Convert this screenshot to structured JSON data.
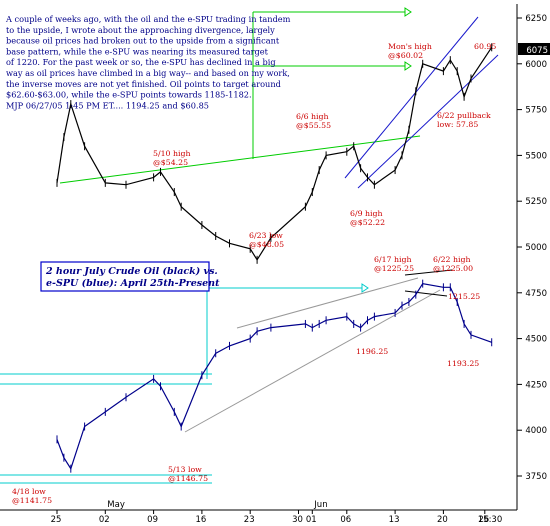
{
  "chart_data": {
    "type": "line",
    "subtitle_line1": "2 hour July Crude Oil (black) vs.",
    "subtitle_line2": "e-SPU (blue): April 25th-Present",
    "commentary": [
      "A couple of weeks ago, with the oil and the e-SPU trading in tandem",
      "to the upside, I wrote about the approaching divergence, largely",
      "because oil prices had broken out to the upside from a significant",
      "base pattern, while the e-SPU was nearing its measured target",
      "of 1220. For the past week or so, the e-SPU has declined in a big",
      "way as oil prices have climbed in a big way-- and based on my work,",
      "the inverse moves are not yet finished. Oil points to target around",
      "$62.60-$63.00, while the e-SPU points towards 1185-1182.",
      "MJP 06/27/05  1:45 PM ET.... 1194.25 and $60.85"
    ],
    "y_axis": {
      "ticks": [
        6250,
        6000,
        5750,
        5500,
        5250,
        5000,
        4750,
        4500,
        4250,
        4000,
        3750
      ],
      "range": [
        3670,
        6350
      ],
      "last_value": "6075"
    },
    "x_axis": {
      "date_ticks": [
        "25",
        "02",
        "09",
        "16",
        "23",
        "30",
        "01",
        "06",
        "13",
        "20",
        "26"
      ],
      "time_label": "15:30",
      "month_labels": [
        "May",
        "Jun"
      ]
    },
    "series": [
      {
        "name": "2 hour July Crude Oil (black)",
        "color": "#000000",
        "x": [
          "2005-04-25",
          "2005-04-26",
          "2005-04-27",
          "2005-04-29",
          "2005-05-02",
          "2005-05-05",
          "2005-05-09",
          "2005-05-10",
          "2005-05-12",
          "2005-05-13",
          "2005-05-16",
          "2005-05-18",
          "2005-05-20",
          "2005-05-23",
          "2005-05-24",
          "2005-05-26",
          "2005-05-31",
          "2005-06-01",
          "2005-06-02",
          "2005-06-03",
          "2005-06-06",
          "2005-06-07",
          "2005-06-08",
          "2005-06-09",
          "2005-06-10",
          "2005-06-13",
          "2005-06-14",
          "2005-06-15",
          "2005-06-16",
          "2005-06-17",
          "2005-06-20",
          "2005-06-21",
          "2005-06-22",
          "2005-06-23",
          "2005-06-24",
          "2005-06-27"
        ],
        "y": [
          5.35,
          5.6,
          5.78,
          5.55,
          5.35,
          5.34,
          5.38,
          5.41,
          5.3,
          5.22,
          5.12,
          5.06,
          5.02,
          4.99,
          4.93,
          5.05,
          5.22,
          5.3,
          5.42,
          5.5,
          5.52,
          5.55,
          5.43,
          5.38,
          5.34,
          5.42,
          5.5,
          5.64,
          5.85,
          6.0,
          5.96,
          6.02,
          5.96,
          5.82,
          5.92,
          6.09
        ]
      },
      {
        "name": "e-SPU (blue)",
        "color": "#00008b",
        "x": [
          "2005-04-25",
          "2005-04-26",
          "2005-04-27",
          "2005-04-29",
          "2005-05-02",
          "2005-05-05",
          "2005-05-09",
          "2005-05-10",
          "2005-05-12",
          "2005-05-13",
          "2005-05-16",
          "2005-05-18",
          "2005-05-20",
          "2005-05-23",
          "2005-05-24",
          "2005-05-26",
          "2005-05-31",
          "2005-06-01",
          "2005-06-02",
          "2005-06-03",
          "2005-06-06",
          "2005-06-07",
          "2005-06-08",
          "2005-06-09",
          "2005-06-10",
          "2005-06-13",
          "2005-06-14",
          "2005-06-15",
          "2005-06-16",
          "2005-06-17",
          "2005-06-20",
          "2005-06-21",
          "2005-06-22",
          "2005-06-23",
          "2005-06-24",
          "2005-06-27"
        ],
        "y": [
          3.95,
          3.85,
          3.79,
          4.02,
          4.1,
          4.18,
          4.28,
          4.24,
          4.1,
          4.02,
          4.3,
          4.42,
          4.46,
          4.5,
          4.54,
          4.56,
          4.58,
          4.56,
          4.58,
          4.6,
          4.62,
          4.58,
          4.56,
          4.6,
          4.62,
          4.64,
          4.68,
          4.7,
          4.74,
          4.8,
          4.78,
          4.78,
          4.7,
          4.58,
          4.52,
          4.48
        ]
      }
    ],
    "annotations": [
      {
        "text": "4/18 low",
        "text2": "@1141.75",
        "color": "#cc0000"
      },
      {
        "text": "5/10 high",
        "text2": "@$54.25",
        "color": "#cc0000"
      },
      {
        "text": "5/13 low",
        "text2": "@1146.75",
        "color": "#cc0000"
      },
      {
        "text": "6/23 low",
        "text2": "@$48.05",
        "color": "#cc0000"
      },
      {
        "text": "6/6 high",
        "text2": "@$55.55",
        "color": "#cc0000"
      },
      {
        "text": "6/9 high",
        "text2": "@$52.22",
        "color": "#cc0000"
      },
      {
        "text": "Mon's high",
        "text2": "@$60.02",
        "color": "#cc0000"
      },
      {
        "text": "6/22 pullback",
        "text2": "low: 57.85",
        "color": "#cc0000"
      },
      {
        "text": "6/17 high",
        "text2": "@1225.25",
        "color": "#cc0000"
      },
      {
        "text": "6/22 high",
        "text2": "@1225.00",
        "color": "#cc0000"
      },
      {
        "text": "1215.25",
        "text2": "",
        "color": "#cc0000"
      },
      {
        "text": "1196.25",
        "text2": "",
        "color": "#cc0000"
      },
      {
        "text": "1193.25",
        "text2": "",
        "color": "#cc0000"
      },
      {
        "text": "60.95",
        "text2": "",
        "color": "#cc0000"
      }
    ],
    "grid": false,
    "colors": {
      "annotation": "#cc0000",
      "trendline_green": "#00cc00",
      "channel_blue": "#1a1acc",
      "support_cyan": "#00cccc",
      "spu_trend_gray": "#999999",
      "title_box_border": "#0000cc",
      "text_blue": "#000088"
    }
  }
}
